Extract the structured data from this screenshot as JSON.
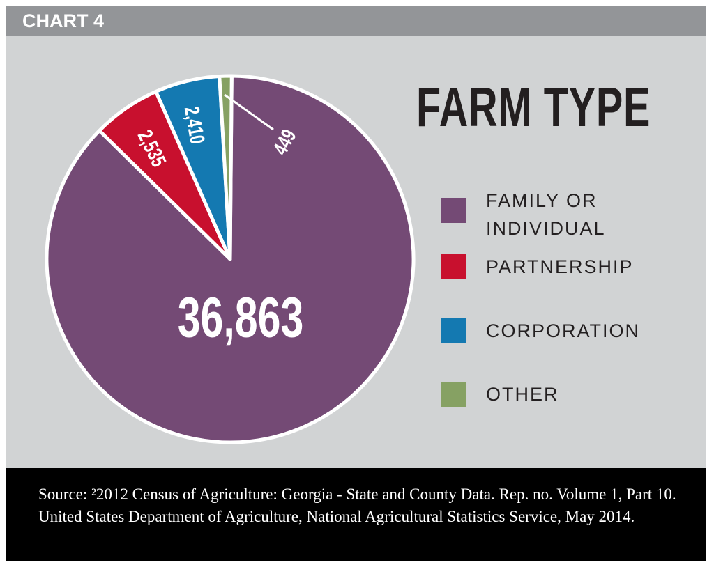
{
  "header": {
    "label": "CHART 4"
  },
  "chart_data": {
    "type": "pie",
    "title": "FARM TYPE",
    "categories": [
      "FAMILY OR INDIVIDUAL",
      "PARTNERSHIP",
      "CORPORATION",
      "OTHER"
    ],
    "values": [
      36863,
      2535,
      2410,
      449
    ],
    "labels": [
      "36,863",
      "2,535",
      "2,410",
      "449"
    ],
    "colors": [
      "#744a75",
      "#c8102e",
      "#1479b1",
      "#86a163"
    ],
    "legend": "right"
  },
  "legend": [
    {
      "label": "FAMILY OR\nINDIVIDUAL",
      "color": "#744a75"
    },
    {
      "label": "PARTNERSHIP",
      "color": "#c8102e"
    },
    {
      "label": "CORPORATION",
      "color": "#1479b1"
    },
    {
      "label": "OTHER",
      "color": "#86a163"
    }
  ],
  "footer": {
    "source": "Source: ²2012 Census of Agriculture: Georgia - State and County Data. Rep. no. Volume 1, Part 10. United States Department of Agriculture, National Agricultural Statistics Service, May 2014."
  }
}
